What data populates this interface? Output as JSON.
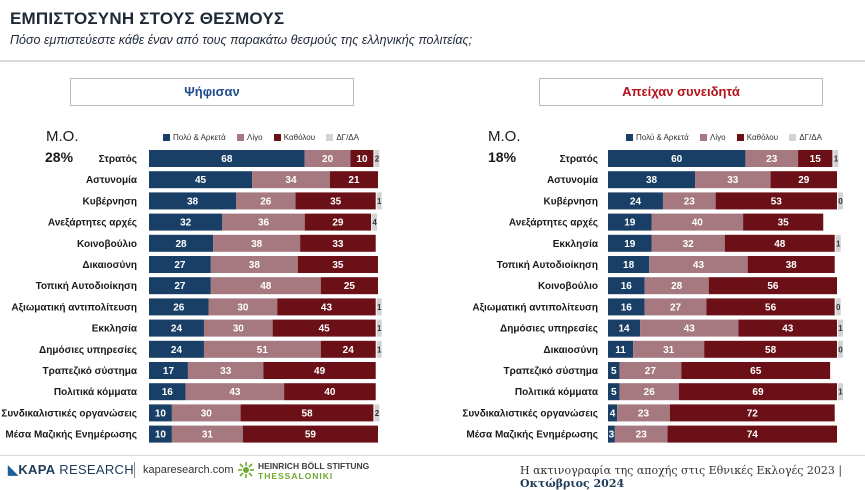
{
  "header": {
    "title": "ΕΜΠΙΣΤΟΣΥΝΗ ΣΤΟΥΣ ΘΕΣΜΟΥΣ",
    "subtitle": "Πόσο εμπιστεύεστε κάθε έναν από τους παρακάτω θεσμούς της ελληνικής πολιτείας;"
  },
  "colors": {
    "high": "#1a3f66",
    "little": "#a5797f",
    "none": "#6b1016",
    "dk": "#d3d3d3",
    "header_left": "#1f4e8c",
    "header_right": "#b3141c"
  },
  "legend": {
    "high": "Πολύ & Αρκετά",
    "little": "Λίγο",
    "none": "Καθόλου",
    "dk": "ΔΓ/ΔΑ"
  },
  "panels": {
    "left": {
      "header": "Ψήφισαν",
      "mo_label": "Μ.Ο.",
      "mo_value": "28%"
    },
    "right": {
      "header": "Απείχαν συνειδητά",
      "mo_label": "Μ.Ο.",
      "mo_value": "18%"
    }
  },
  "chart_data": [
    {
      "type": "bar",
      "orientation": "horizontal-stacked",
      "title": "Ψήφισαν",
      "categories": [
        "Στρατός",
        "Αστυνομία",
        "Κυβέρνηση",
        "Ανεξάρτητες αρχές",
        "Κοινοβούλιο",
        "Δικαιοσύνη",
        "Τοπική Αυτοδιοίκηση",
        "Αξιωματική αντιπολίτευση",
        "Εκκλησία",
        "Δημόσιες υπηρεσίες",
        "Τραπεζικό σύστημα",
        "Πολιτικά κόμματα",
        "Συνδικαλιστικές οργανώσεις",
        "Μέσα Μαζικής Ενημέρωσης"
      ],
      "series": [
        {
          "name": "Πολύ & Αρκετά",
          "values": [
            68,
            45,
            38,
            32,
            28,
            27,
            27,
            26,
            24,
            24,
            17,
            16,
            10,
            10
          ]
        },
        {
          "name": "Λίγο",
          "values": [
            20,
            34,
            26,
            36,
            38,
            38,
            48,
            30,
            30,
            51,
            33,
            43,
            30,
            31
          ]
        },
        {
          "name": "Καθόλου",
          "values": [
            10,
            21,
            35,
            29,
            33,
            35,
            25,
            43,
            45,
            24,
            49,
            40,
            58,
            59
          ]
        },
        {
          "name": "ΔΓ/ΔΑ",
          "values": [
            2,
            0,
            1,
            4,
            0,
            0,
            0,
            1,
            1,
            1,
            0,
            0,
            2,
            0
          ]
        }
      ],
      "xlim": [
        0,
        100
      ]
    },
    {
      "type": "bar",
      "orientation": "horizontal-stacked",
      "title": "Απείχαν συνειδητά",
      "categories": [
        "Στρατός",
        "Αστυνομία",
        "Κυβέρνηση",
        "Ανεξάρτητες αρχές",
        "Εκκλησία",
        "Τοπική Αυτοδιοίκηση",
        "Κοινοβούλιο",
        "Αξιωματική αντιπολίτευση",
        "Δημόσιες υπηρεσίες",
        "Δικαιοσύνη",
        "Τραπεζικό σύστημα",
        "Πολιτικά κόμματα",
        "Συνδικαλιστικές οργανώσεις",
        "Μέσα Μαζικής Ενημέρωσης"
      ],
      "series": [
        {
          "name": "Πολύ & Αρκετά",
          "values": [
            60,
            38,
            24,
            19,
            19,
            18,
            16,
            16,
            14,
            11,
            5,
            5,
            4,
            3
          ]
        },
        {
          "name": "Λίγο",
          "values": [
            23,
            33,
            23,
            40,
            32,
            43,
            28,
            27,
            43,
            31,
            27,
            26,
            23,
            23
          ]
        },
        {
          "name": "Καθόλου",
          "values": [
            15,
            29,
            53,
            35,
            48,
            38,
            56,
            56,
            43,
            58,
            65,
            69,
            72,
            74
          ]
        },
        {
          "name": "ΔΓ/ΔΑ",
          "values": [
            1,
            0,
            0,
            0,
            1,
            0,
            0,
            0,
            1,
            0,
            0,
            1,
            0,
            0
          ]
        }
      ],
      "dk_labels": [
        "1",
        "",
        "0",
        "",
        "1",
        "",
        "",
        "0",
        "1",
        "0",
        "",
        "1",
        "",
        ""
      ],
      "xlim": [
        0,
        100
      ]
    }
  ],
  "left_dk_labels": [
    "2",
    "",
    "1",
    "4",
    "",
    "",
    "",
    "1",
    "1",
    "1",
    "",
    "",
    "2",
    ""
  ],
  "footer": {
    "logo_kapa": "KAPA",
    "logo_research": " RESEARCH",
    "website": "kaparesearch.com",
    "hb_line1": "HEINRICH BÖLL STIFTUNG",
    "hb_line2": "THESSALONIKI",
    "note": "Η ακτινογραφία της αποχής στις Εθνικές Εκλογές 2023 | ",
    "date": "Οκτώβριος 2024"
  }
}
